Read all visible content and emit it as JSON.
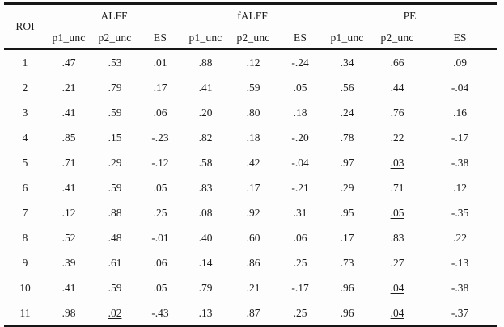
{
  "table": {
    "row_header_label": "ROI",
    "groups": [
      {
        "label": "ALFF",
        "subcolumns": [
          "p1_unc",
          "p2_unc",
          "ES"
        ]
      },
      {
        "label": "fALFF",
        "subcolumns": [
          "p1_unc",
          "p2_unc",
          "ES"
        ]
      },
      {
        "label": "PE",
        "subcolumns": [
          "p1_unc",
          "p2_unc",
          "ES"
        ]
      }
    ],
    "rows": [
      {
        "roi": "1",
        "cells": [
          {
            "text": ".47"
          },
          {
            "text": ".53"
          },
          {
            "text": ".01"
          },
          {
            "text": ".88"
          },
          {
            "text": ".12"
          },
          {
            "text": "-.24"
          },
          {
            "text": ".34"
          },
          {
            "text": ".66"
          },
          {
            "text": ".09"
          }
        ]
      },
      {
        "roi": "2",
        "cells": [
          {
            "text": ".21"
          },
          {
            "text": ".79"
          },
          {
            "text": ".17"
          },
          {
            "text": ".41"
          },
          {
            "text": ".59"
          },
          {
            "text": ".05"
          },
          {
            "text": ".56"
          },
          {
            "text": ".44"
          },
          {
            "text": "-.04"
          }
        ]
      },
      {
        "roi": "3",
        "cells": [
          {
            "text": ".41"
          },
          {
            "text": ".59"
          },
          {
            "text": ".06"
          },
          {
            "text": ".20"
          },
          {
            "text": ".80"
          },
          {
            "text": ".18"
          },
          {
            "text": ".24"
          },
          {
            "text": ".76"
          },
          {
            "text": ".16"
          }
        ]
      },
      {
        "roi": "4",
        "cells": [
          {
            "text": ".85"
          },
          {
            "text": ".15"
          },
          {
            "text": "-.23"
          },
          {
            "text": ".82"
          },
          {
            "text": ".18"
          },
          {
            "text": "-.20"
          },
          {
            "text": ".78"
          },
          {
            "text": ".22"
          },
          {
            "text": "-.17"
          }
        ]
      },
      {
        "roi": "5",
        "cells": [
          {
            "text": ".71"
          },
          {
            "text": ".29"
          },
          {
            "text": "-.12"
          },
          {
            "text": ".58"
          },
          {
            "text": ".42"
          },
          {
            "text": "-.04"
          },
          {
            "text": ".97"
          },
          {
            "text": ".03",
            "bold": true,
            "underline": true
          },
          {
            "text": "-.38"
          }
        ]
      },
      {
        "roi": "6",
        "cells": [
          {
            "text": ".41"
          },
          {
            "text": ".59"
          },
          {
            "text": ".05"
          },
          {
            "text": ".83"
          },
          {
            "text": ".17"
          },
          {
            "text": "-.21"
          },
          {
            "text": ".29"
          },
          {
            "text": ".71"
          },
          {
            "text": ".12"
          }
        ]
      },
      {
        "roi": "7",
        "cells": [
          {
            "text": ".12"
          },
          {
            "text": ".88"
          },
          {
            "text": ".25"
          },
          {
            "text": ".08"
          },
          {
            "text": ".92"
          },
          {
            "text": ".31"
          },
          {
            "text": ".95"
          },
          {
            "text": ".05",
            "bold": true,
            "underline": true
          },
          {
            "text": "-.35"
          }
        ]
      },
      {
        "roi": "8",
        "cells": [
          {
            "text": ".52"
          },
          {
            "text": ".48"
          },
          {
            "text": "-.01"
          },
          {
            "text": ".40"
          },
          {
            "text": ".60"
          },
          {
            "text": ".06"
          },
          {
            "text": ".17"
          },
          {
            "text": ".83"
          },
          {
            "text": ".22"
          }
        ]
      },
      {
        "roi": "9",
        "cells": [
          {
            "text": ".39"
          },
          {
            "text": ".61"
          },
          {
            "text": ".06"
          },
          {
            "text": ".14"
          },
          {
            "text": ".86"
          },
          {
            "text": ".25"
          },
          {
            "text": ".73"
          },
          {
            "text": ".27"
          },
          {
            "text": "-.13"
          }
        ]
      },
      {
        "roi": "10",
        "cells": [
          {
            "text": ".41"
          },
          {
            "text": ".59"
          },
          {
            "text": ".05"
          },
          {
            "text": ".79"
          },
          {
            "text": ".21"
          },
          {
            "text": "-.17"
          },
          {
            "text": ".96"
          },
          {
            "text": ".04",
            "bold": true,
            "underline": true
          },
          {
            "text": "-.38",
            "bold": true
          }
        ]
      },
      {
        "roi": "11",
        "cells": [
          {
            "text": ".98"
          },
          {
            "text": ".02",
            "bold": true,
            "underline": true
          },
          {
            "text": "-.43",
            "bold": true
          },
          {
            "text": ".13"
          },
          {
            "text": ".87"
          },
          {
            "text": ".25"
          },
          {
            "text": ".96"
          },
          {
            "text": ".04",
            "bold": true,
            "underline": true
          },
          {
            "text": "-.37",
            "bold": true
          }
        ]
      }
    ]
  },
  "colors": {
    "text": "#1d1d1d",
    "rule": "#161616",
    "background": "#fdfdfd"
  }
}
